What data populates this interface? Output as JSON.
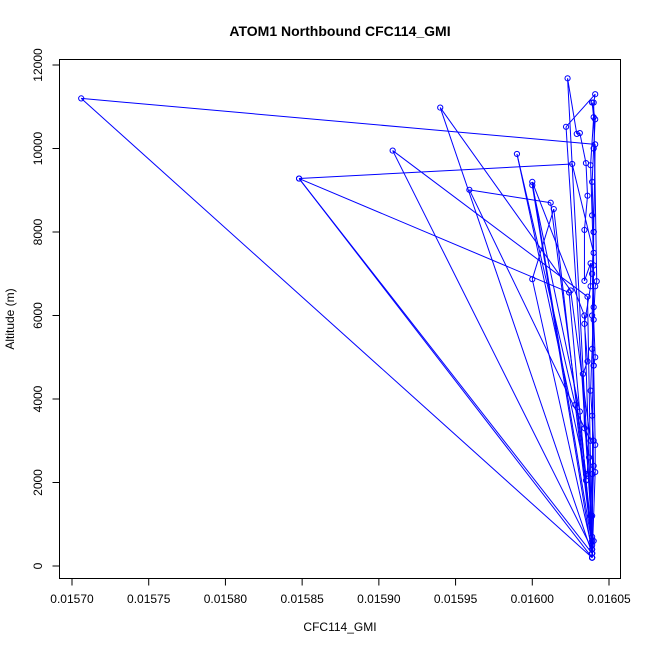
{
  "chart_data": {
    "type": "line",
    "title": "ATOM1 Northbound CFC114_GMI",
    "xlabel": "CFC114_GMI",
    "ylabel": "Altitude (m)",
    "xlim": [
      0.0157,
      0.01605
    ],
    "ylim": [
      0,
      12000
    ],
    "xticks": [
      "0.01570",
      "0.01575",
      "0.01580",
      "0.01585",
      "0.01590",
      "0.01595",
      "0.01600",
      "0.01605"
    ],
    "yticks": [
      "0",
      "2000",
      "4000",
      "6000",
      "8000",
      "10000",
      "12000"
    ],
    "x_tick_values": [
      0.0157,
      0.01575,
      0.0158,
      0.01585,
      0.0159,
      0.01595,
      0.016,
      0.01605
    ],
    "y_tick_values": [
      0,
      2000,
      4000,
      6000,
      8000,
      10000,
      12000
    ],
    "grid": false,
    "series": [
      {
        "color": "#0000ff",
        "marker": "open-circle",
        "points": [
          [
            0.016039,
            200
          ],
          [
            0.01604,
            600
          ],
          [
            0.016038,
            1200
          ],
          [
            0.016039,
            2200
          ],
          [
            0.01604,
            3000
          ],
          [
            0.016038,
            4200
          ],
          [
            0.016039,
            5200
          ],
          [
            0.01604,
            6200
          ],
          [
            0.016039,
            7000
          ],
          [
            0.01604,
            8000
          ],
          [
            0.016039,
            9200
          ],
          [
            0.01604,
            10000
          ],
          [
            0.016041,
            10700
          ],
          [
            0.016039,
            11100
          ],
          [
            0.01604,
            10750
          ],
          [
            0.016038,
            9600
          ],
          [
            0.016039,
            8400
          ],
          [
            0.01604,
            7200
          ],
          [
            0.016039,
            6000
          ],
          [
            0.01604,
            4800
          ],
          [
            0.016039,
            3600
          ],
          [
            0.01604,
            2400
          ],
          [
            0.016039,
            1200
          ],
          [
            0.016039,
            200
          ],
          [
            0.015706,
            11200
          ],
          [
            0.016041,
            10100
          ],
          [
            0.01604,
            8000
          ],
          [
            0.016039,
            200
          ],
          [
            0.015848,
            9280
          ],
          [
            0.016026,
            9630
          ],
          [
            0.01604,
            7500
          ],
          [
            0.016039,
            300
          ],
          [
            0.015848,
            9280
          ],
          [
            0.016024,
            6550
          ],
          [
            0.016039,
            400
          ],
          [
            0.015909,
            9950
          ],
          [
            0.016036,
            6450
          ],
          [
            0.016039,
            300
          ],
          [
            0.01594,
            10980
          ],
          [
            0.016025,
            6600
          ],
          [
            0.016038,
            3000
          ],
          [
            0.015959,
            9010
          ],
          [
            0.016012,
            8700
          ],
          [
            0.016035,
            2200
          ],
          [
            0.01599,
            9870
          ],
          [
            0.016028,
            3860
          ],
          [
            0.016039,
            500
          ],
          [
            0.016,
            9200
          ],
          [
            0.016034,
            6000
          ],
          [
            0.016039,
            300
          ],
          [
            0.016,
            9120
          ],
          [
            0.016031,
            3700
          ],
          [
            0.016039,
            400
          ],
          [
            0.016,
            6870
          ],
          [
            0.016014,
            8550
          ],
          [
            0.016039,
            600
          ],
          [
            0.016023,
            11680
          ],
          [
            0.016029,
            10350
          ],
          [
            0.016031,
            10370
          ],
          [
            0.016035,
            9650
          ],
          [
            0.016036,
            8870
          ],
          [
            0.016034,
            8050
          ],
          [
            0.016034,
            6830
          ],
          [
            0.016038,
            7250
          ],
          [
            0.016038,
            6700
          ],
          [
            0.016034,
            5800
          ],
          [
            0.016036,
            4900
          ],
          [
            0.016033,
            4600
          ],
          [
            0.016034,
            3300
          ],
          [
            0.016037,
            2600
          ],
          [
            0.016035,
            2050
          ],
          [
            0.016039,
            700
          ],
          [
            0.016022,
            10520
          ],
          [
            0.016041,
            11300
          ],
          [
            0.01604,
            11100
          ],
          [
            0.016042,
            6820
          ],
          [
            0.016041,
            6700
          ],
          [
            0.01604,
            5900
          ],
          [
            0.016041,
            5000
          ],
          [
            0.01604,
            4800
          ],
          [
            0.016041,
            2900
          ],
          [
            0.016041,
            2250
          ],
          [
            0.016039,
            200
          ]
        ]
      }
    ]
  }
}
